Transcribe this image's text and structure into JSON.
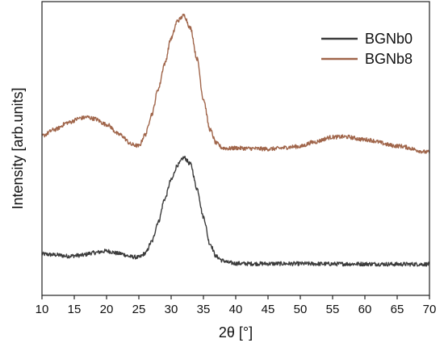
{
  "chart_data": {
    "type": "line",
    "xlabel": "2θ [°]",
    "ylabel": "Intensity [arb.units]",
    "xlim": [
      10,
      70
    ],
    "xticks": [
      10,
      15,
      20,
      25,
      30,
      35,
      40,
      45,
      50,
      55,
      60,
      65,
      70
    ],
    "y_tick_labels": false,
    "grid": false,
    "legend_position": "top-right",
    "series": [
      {
        "name": "BGNb0",
        "color": "#3b3b3b",
        "x": [
          10,
          12,
          14,
          16,
          18,
          20,
          22,
          24,
          25,
          26,
          27,
          28,
          29,
          30,
          31,
          32,
          33,
          34,
          35,
          36,
          37,
          38,
          39,
          40,
          42,
          45,
          50,
          55,
          60,
          65,
          70
        ],
        "y": [
          8.3,
          8.0,
          7.5,
          7.8,
          8.8,
          9.5,
          8.5,
          7.2,
          7.0,
          8.6,
          13.2,
          21.0,
          30.0,
          37.5,
          43.5,
          46.4,
          43.8,
          34.2,
          23.0,
          12.4,
          7.3,
          5.7,
          4.9,
          4.6,
          4.5,
          4.5,
          4.5,
          4.4,
          4.4,
          4.3,
          4.3
        ]
      },
      {
        "name": "BGNb8",
        "color": "#a0654a",
        "x": [
          10,
          12,
          14,
          16,
          17,
          18,
          20,
          22,
          24,
          25,
          26,
          27,
          28,
          29,
          30,
          31,
          32,
          33,
          34,
          35,
          36,
          37,
          38,
          39,
          40,
          42,
          45,
          50,
          52,
          55,
          57,
          60,
          65,
          70
        ],
        "y": [
          55.0,
          57.5,
          60.2,
          62.0,
          62.4,
          61.8,
          59.5,
          55.5,
          51.5,
          51.0,
          55.5,
          63.5,
          73.5,
          83.5,
          93.5,
          100.5,
          102.5,
          97.5,
          85.5,
          69.5,
          57.5,
          52.0,
          50.2,
          50.0,
          50.2,
          50.0,
          49.8,
          50.8,
          52.5,
          54.5,
          54.6,
          53.5,
          51.0,
          48.5
        ]
      }
    ]
  }
}
